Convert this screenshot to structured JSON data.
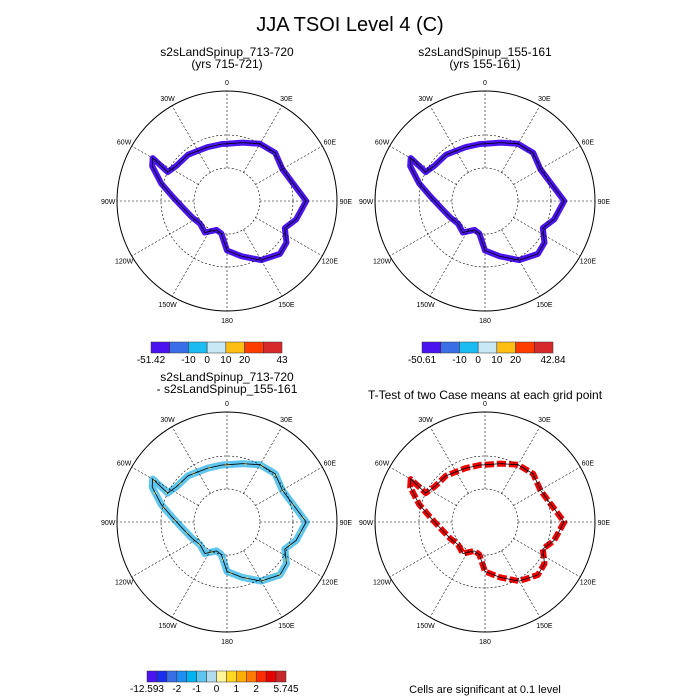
{
  "title": "JJA TSOI Level 4 (C)",
  "footer_text": "Cells are significant at 0.1 level",
  "lon_labels": [
    "0",
    "30E",
    "60E",
    "90E",
    "120E",
    "150E",
    "180",
    "150W",
    "120W",
    "90W",
    "60W",
    "30W"
  ],
  "chart_data": [
    {
      "type": "heatmap",
      "projection": "south-polar-stereographic",
      "title": "s2sLandSpinup_713-720",
      "subtitle": "(yrs 715-721)",
      "colorbar": {
        "labels": [
          "-51.42",
          "-10",
          "0",
          "10",
          "20",
          "43"
        ],
        "colors": [
          "#4a13f0",
          "#3a6ee6",
          "#1bbcf2",
          "#c8e8f6",
          "#ffbe13",
          "#ff3c00",
          "#d7282a"
        ]
      },
      "dominant_color": "#4a13f0"
    },
    {
      "type": "heatmap",
      "projection": "south-polar-stereographic",
      "title": "s2sLandSpinup_155-161",
      "subtitle": "(yrs 155-161)",
      "colorbar": {
        "labels": [
          "-50.61",
          "-10",
          "0",
          "10",
          "20",
          "42.84"
        ],
        "colors": [
          "#4a13f0",
          "#3a6ee6",
          "#1bbcf2",
          "#c8e8f6",
          "#ffbe13",
          "#ff3c00",
          "#d7282a"
        ]
      },
      "dominant_color": "#4a13f0"
    },
    {
      "type": "heatmap",
      "projection": "south-polar-stereographic",
      "title": "s2sLandSpinup_713-720",
      "subtitle": "- s2sLandSpinup_155-161",
      "colorbar": {
        "labels": [
          "-12.593",
          "-2",
          "-1",
          "0",
          "1",
          "2",
          "5.745"
        ],
        "colors": [
          "#4a13f0",
          "#1a2ef0",
          "#3a6ee6",
          "#1e8ef0",
          "#00b4f0",
          "#5ec5ee",
          "#b0dcf0",
          "#fff59a",
          "#ffd820",
          "#ffae00",
          "#ff7a00",
          "#ff2a00",
          "#e60000",
          "#c8282a"
        ]
      },
      "dominant_color": "#5ec5ee"
    },
    {
      "type": "heatmap",
      "projection": "south-polar-stereographic",
      "title": "T-Test of two Case means at each grid point",
      "dominant_color": "#ee0000"
    }
  ]
}
